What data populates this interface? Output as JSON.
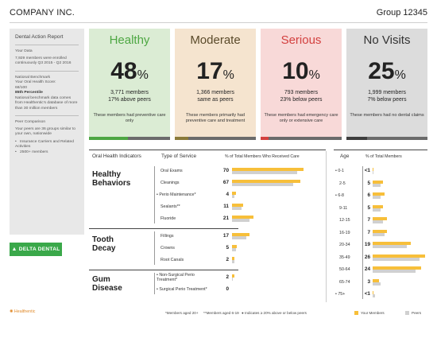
{
  "header": {
    "company": "COMPANY INC.",
    "group": "Group 12345"
  },
  "sidebar": {
    "title": "Dental Action Report",
    "your_data_label": "Your Data",
    "your_data_text": "7,929 members were enrolled continuously Q3 2015 - Q2 2016",
    "benchmark_label": "National Benchmark",
    "score_label": "Your Oral Health Score:",
    "score_value": "68/100",
    "percentile": "85th Percentile",
    "benchmark_text": "National benchmark data comes from Healthentic's database of more than 30 million members",
    "peer_label": "Peer Comparison",
    "peer_text": "Your peers are 36 groups similar to your own, nationwide",
    "peer_bullets": [
      "Insurance Carriers and Related Activities",
      "2500+ members"
    ]
  },
  "logo": {
    "text": "DELTA DENTAL",
    "mark": "▲"
  },
  "cards": [
    {
      "title": "Healthy",
      "pct": "48",
      "members": "3,771 members",
      "compare": "17% above peers",
      "desc": "These members had preventive care only",
      "accent": "#4da742"
    },
    {
      "title": "Moderate",
      "pct": "17",
      "members": "1,366 members",
      "compare": "same as peers",
      "desc": "These members primarily had preventive care and treatment",
      "accent": "#8a7a3a"
    },
    {
      "title": "Serious",
      "pct": "10",
      "members": "793 members",
      "compare": "23% below peers",
      "desc": "These members had emergency care only or extensive care",
      "accent": "#d3403f"
    },
    {
      "title": "No Visits",
      "pct": "25",
      "members": "1,999 members",
      "compare": "7% below peers",
      "desc": "These members had no dental claims",
      "accent": "#555555"
    }
  ],
  "pct_sign": "%",
  "table": {
    "col_indicators": "Oral Health Indicators",
    "col_service": "Type of Service",
    "col_pct": "% of Total Members Who Received Care",
    "col_age": "Age",
    "col_age_pct": "% of Total Members",
    "groups": [
      {
        "title": "Healthy Behaviors",
        "title_l1": "Healthy",
        "title_l2": "Behaviors"
      },
      {
        "title": "Tooth Decay",
        "title_l1": "Tooth",
        "title_l2": "Decay"
      },
      {
        "title": "Gum Disease",
        "title_l1": "Gum",
        "title_l2": "Disease"
      }
    ]
  },
  "chart_data": [
    {
      "type": "bar",
      "title": "% of Total Members Who Received Care",
      "categories": [
        "Oral Exams",
        "Cleanings",
        "Perio Maintenance*",
        "Sealants**",
        "Fluoride",
        "Fillings",
        "Crowns",
        "Root Canals",
        "Non-Surgical Perio Treatment*",
        "Surgical Perio Treatment*"
      ],
      "marked": [
        false,
        false,
        true,
        false,
        false,
        false,
        false,
        false,
        true,
        true
      ],
      "series": [
        {
          "name": "Your Members",
          "values": [
            70,
            67,
            4,
            11,
            21,
            17,
            5,
            2,
            2,
            0
          ]
        },
        {
          "name": "Peers",
          "values": [
            64,
            60,
            2,
            9,
            17,
            14,
            4,
            2,
            1,
            0
          ]
        }
      ],
      "labels": [
        "70",
        "67",
        "4",
        "11",
        "21",
        "17",
        "5",
        "2",
        "2",
        "0"
      ],
      "groups": [
        [
          0,
          4
        ],
        [
          5,
          7
        ],
        [
          8,
          9
        ]
      ]
    },
    {
      "type": "bar",
      "title": "% of Total Members",
      "categories": [
        "0-1",
        "2-5",
        "6-8",
        "9-11",
        "12-15",
        "16-19",
        "20-34",
        "35-49",
        "50-64",
        "65-74",
        "75+"
      ],
      "marked": [
        true,
        false,
        true,
        false,
        false,
        false,
        false,
        false,
        false,
        false,
        true
      ],
      "series": [
        {
          "name": "Your Members",
          "values": [
            0.5,
            5,
            6,
            5,
            7,
            7,
            19,
            26,
            24,
            3,
            0.5
          ]
        },
        {
          "name": "Peers",
          "values": [
            0.5,
            4,
            4,
            4,
            5,
            6,
            17,
            23,
            21,
            4,
            1
          ]
        }
      ],
      "labels": [
        "<1",
        "5",
        "6",
        "5",
        "7",
        "7",
        "19",
        "26",
        "24",
        "3",
        "<1"
      ]
    }
  ],
  "footnotes": {
    "adults": "*Members aged 20+",
    "kids": "**Members aged 6-19",
    "indicator": "Indicates ≥ 20% above or below peers",
    "legend_yours": "Your Members",
    "legend_peers": "Peers",
    "brand": "Healthentic"
  },
  "colors": {
    "your_members": "#f7bf3a",
    "peers": "#d0d0d0"
  }
}
